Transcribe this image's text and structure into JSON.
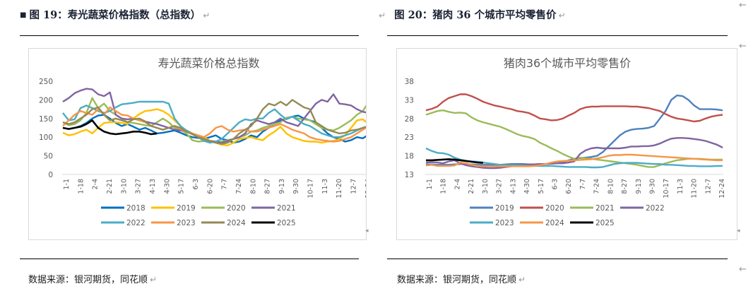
{
  "left": {
    "figure_title": "图 19：寿光蔬菜价格指数（总指数）",
    "source": "数据来源：银河期货，同花顺"
  },
  "right": {
    "figure_title": "图 20：猪肉 36 个城市平均零售价",
    "source": "数据来源：银河期货，同花顺"
  },
  "paragraph_mark": "↵",
  "edge_arrow": "←",
  "chart_data": [
    {
      "type": "line",
      "title": "寿光蔬菜价格总指数",
      "xlabel": "",
      "ylabel": "",
      "ylim": [
        0,
        250
      ],
      "yticks": [
        "0",
        "50",
        "100",
        "150",
        "200",
        "250"
      ],
      "grid": false,
      "legend": "bottom",
      "categories": [
        "1-1",
        "1-18",
        "2-4",
        "2-21",
        "3-10",
        "3-27",
        "4-13",
        "4-30",
        "5-17",
        "6-3",
        "6-20",
        "7-7",
        "7-24",
        "8-10",
        "8-27",
        "9-13",
        "9-30",
        "10-17",
        "11-3",
        "11-20",
        "12-7",
        "12-24"
      ],
      "x_points": 53,
      "series": [
        {
          "name": "2018",
          "color": "#0070C0",
          "values": [
            125,
            122,
            125,
            130,
            138,
            150,
            158,
            160,
            150,
            138,
            130,
            135,
            128,
            120,
            125,
            118,
            110,
            112,
            115,
            118,
            112,
            105,
            100,
            98,
            95,
            100,
            105,
            95,
            92,
            85,
            88,
            95,
            105,
            100,
            115,
            125,
            135,
            145,
            150,
            155,
            158,
            150,
            145,
            140,
            125,
            110,
            100,
            95,
            88,
            92,
            100,
            97,
            107
          ]
        },
        {
          "name": "2019",
          "color": "#FFC000",
          "values": [
            112,
            105,
            108,
            115,
            120,
            110,
            125,
            138,
            140,
            140,
            138,
            135,
            150,
            162,
            170,
            172,
            175,
            170,
            160,
            145,
            130,
            115,
            110,
            105,
            100,
            90,
            85,
            80,
            78,
            85,
            95,
            98,
            100,
            95,
            92,
            105,
            115,
            128,
            110,
            100,
            95,
            90,
            88,
            88,
            85,
            88,
            90,
            95,
            105,
            125,
            145,
            148,
            135
          ]
        },
        {
          "name": "2020",
          "color": "#9BBB59",
          "values": [
            140,
            132,
            135,
            145,
            165,
            205,
            178,
            190,
            170,
            160,
            150,
            140,
            138,
            135,
            132,
            130,
            140,
            150,
            140,
            125,
            120,
            110,
            92,
            88,
            90,
            88,
            85,
            88,
            92,
            95,
            100,
            105,
            115,
            118,
            125,
            130,
            135,
            140,
            152,
            155,
            150,
            148,
            145,
            135,
            125,
            120,
            118,
            125,
            135,
            145,
            160,
            170,
            195
          ]
        },
        {
          "name": "2021",
          "color": "#8064A2",
          "values": [
            195,
            205,
            218,
            225,
            230,
            228,
            215,
            210,
            220,
            160,
            150,
            148,
            150,
            145,
            142,
            138,
            135,
            130,
            125,
            120,
            118,
            118,
            110,
            100,
            95,
            90,
            88,
            85,
            90,
            95,
            100,
            110,
            135,
            145,
            140,
            135,
            140,
            150,
            140,
            135,
            130,
            150,
            170,
            190,
            200,
            195,
            215,
            190,
            188,
            185,
            175,
            168,
            165
          ]
        },
        {
          "name": "2022",
          "color": "#4BACC6",
          "values": [
            165,
            145,
            148,
            178,
            185,
            178,
            170,
            165,
            170,
            180,
            188,
            190,
            192,
            195,
            195,
            195,
            195,
            195,
            190,
            150,
            130,
            118,
            110,
            100,
            90,
            85,
            88,
            95,
            110,
            125,
            140,
            148,
            145,
            150,
            150,
            165,
            175,
            160,
            148,
            155,
            145,
            135,
            130,
            120,
            110,
            105,
            100,
            100,
            105,
            110,
            118,
            125,
            130
          ]
        },
        {
          "name": "2023",
          "color": "#F79646",
          "values": [
            130,
            145,
            160,
            170,
            165,
            160,
            175,
            160,
            180,
            170,
            160,
            158,
            150,
            145,
            140,
            130,
            125,
            120,
            125,
            130,
            122,
            115,
            110,
            105,
            100,
            110,
            125,
            130,
            120,
            115,
            118,
            120,
            115,
            115,
            120,
            125,
            130,
            135,
            128,
            120,
            115,
            110,
            100,
            95,
            92,
            90,
            88,
            90,
            95,
            100,
            110,
            120,
            130
          ]
        },
        {
          "name": "2024",
          "color": "#948A54",
          "values": [
            140,
            135,
            140,
            150,
            160,
            175,
            180,
            160,
            145,
            150,
            145,
            140,
            148,
            150,
            142,
            130,
            125,
            120,
            125,
            130,
            125,
            115,
            108,
            100,
            95,
            90,
            85,
            82,
            85,
            95,
            110,
            120,
            130,
            150,
            175,
            190,
            185,
            195,
            185,
            200,
            190,
            180,
            175,
            140,
            130,
            120,
            115,
            110,
            112,
            118,
            120,
            125,
            130
          ]
        },
        {
          "name": "2025",
          "color": "#000000",
          "values": [
            125,
            122,
            125,
            128,
            135,
            145,
            125,
            115,
            110,
            108,
            110,
            112,
            115,
            115,
            112,
            108,
            110,
            null,
            null,
            null,
            null,
            null,
            null,
            null,
            null,
            null,
            null,
            null,
            null,
            null,
            null,
            null,
            null,
            null,
            null,
            null,
            null,
            null,
            null,
            null,
            null,
            null,
            null,
            null,
            null,
            null,
            null,
            null,
            null,
            null,
            null,
            null,
            null
          ]
        }
      ]
    },
    {
      "type": "line",
      "title": "猪肉36个城市平均零售价",
      "xlabel": "",
      "ylabel": "",
      "ylim": [
        13,
        38
      ],
      "yticks": [
        "13",
        "18",
        "23",
        "28",
        "33",
        "38"
      ],
      "grid": false,
      "legend": "bottom",
      "categories": [
        "1-1",
        "1-18",
        "2-4",
        "2-21",
        "3-10",
        "3-27",
        "4-13",
        "4-30",
        "5-17",
        "6-3",
        "6-20",
        "7-7",
        "7-24",
        "8-10",
        "8-27",
        "9-13",
        "9-30",
        "10-17",
        "11-3",
        "11-20",
        "12-7",
        "12-24"
      ],
      "x_points": 53,
      "series": [
        {
          "name": "2019",
          "color": "#4F81BD",
          "values": [
            15.7,
            15.7,
            15.6,
            15.6,
            15.6,
            15.7,
            15.8,
            15.8,
            15.7,
            15.6,
            15.6,
            15.6,
            15.6,
            15.6,
            15.7,
            15.8,
            15.8,
            15.8,
            15.7,
            15.7,
            15.8,
            15.8,
            15.9,
            16.0,
            16.3,
            16.8,
            17.2,
            17.4,
            17.5,
            17.7,
            18.0,
            19.0,
            20.5,
            22.0,
            23.5,
            24.5,
            25.0,
            25.2,
            25.3,
            25.5,
            26.0,
            28.0,
            30.0,
            33.0,
            34.2,
            34.0,
            33.0,
            31.5,
            30.5,
            30.5,
            30.5,
            30.4,
            30.2
          ]
        },
        {
          "name": "2020",
          "color": "#C0504D",
          "values": [
            30.2,
            30.6,
            31.2,
            32.5,
            33.5,
            34.0,
            34.5,
            34.5,
            34.0,
            33.3,
            32.5,
            32.0,
            31.5,
            31.2,
            30.8,
            30.5,
            30.0,
            29.8,
            29.5,
            28.8,
            28.0,
            27.8,
            27.5,
            27.6,
            28.0,
            28.8,
            29.5,
            30.5,
            31.0,
            31.2,
            31.2,
            31.3,
            31.3,
            31.3,
            31.3,
            31.3,
            31.2,
            31.2,
            31.0,
            30.8,
            30.4,
            30.0,
            29.2,
            28.5,
            28.0,
            27.8,
            27.5,
            27.2,
            27.4,
            28.0,
            28.5,
            28.8,
            29.0
          ]
        },
        {
          "name": "2021",
          "color": "#9BBB59",
          "values": [
            29.0,
            29.5,
            30.0,
            30.2,
            29.8,
            29.5,
            29.6,
            29.4,
            28.3,
            27.5,
            27.0,
            26.6,
            26.2,
            25.8,
            25.2,
            24.5,
            23.8,
            23.3,
            23.0,
            22.5,
            21.5,
            20.8,
            20.0,
            19.3,
            18.5,
            17.8,
            17.2,
            17.5,
            17.3,
            17.2,
            17.0,
            16.8,
            16.6,
            16.4,
            16.2,
            16.0,
            15.8,
            15.6,
            15.3,
            15.0,
            15.0,
            15.5,
            16.0,
            16.4,
            16.8,
            17.0,
            17.2,
            17.2,
            17.2,
            17.1,
            17.0,
            17.0,
            17.0
          ]
        },
        {
          "name": "2022",
          "color": "#8064A2",
          "values": [
            16.2,
            16.3,
            16.2,
            16.0,
            16.5,
            16.8,
            16.0,
            15.5,
            15.2,
            15.0,
            14.8,
            14.7,
            14.7,
            14.8,
            15.0,
            15.2,
            15.4,
            15.6,
            15.7,
            15.7,
            15.8,
            15.8,
            15.9,
            16.0,
            16.0,
            16.2,
            16.5,
            18.5,
            19.5,
            20.0,
            20.2,
            20.0,
            20.0,
            20.0,
            20.0,
            20.2,
            20.5,
            20.5,
            20.6,
            20.6,
            20.8,
            21.3,
            22.0,
            22.6,
            22.8,
            22.8,
            22.7,
            22.5,
            22.3,
            22.0,
            21.5,
            21.0,
            20.2
          ]
        },
        {
          "name": "2023",
          "color": "#4BACC6",
          "values": [
            20.0,
            19.3,
            18.8,
            18.7,
            18.3,
            17.5,
            17.0,
            16.7,
            16.5,
            16.4,
            16.2,
            16.0,
            15.8,
            15.6,
            15.5,
            15.4,
            15.4,
            15.4,
            15.3,
            15.3,
            15.3,
            15.3,
            15.3,
            15.2,
            15.1,
            15.0,
            15.0,
            15.0,
            15.0,
            14.9,
            14.9,
            15.0,
            15.4,
            15.8,
            16.0,
            16.1,
            16.1,
            16.1,
            16.0,
            15.9,
            15.8,
            15.8,
            15.6,
            15.6,
            15.5,
            15.4,
            15.3,
            15.3,
            15.2,
            15.2,
            15.2,
            15.3,
            15.3
          ]
        },
        {
          "name": "2024",
          "color": "#F79646",
          "values": [
            15.4,
            15.6,
            15.3,
            15.3,
            15.3,
            15.4,
            16.2,
            16.0,
            15.6,
            15.3,
            15.2,
            15.2,
            15.2,
            15.2,
            15.2,
            15.2,
            15.2,
            15.2,
            15.2,
            15.3,
            15.5,
            15.8,
            16.2,
            16.5,
            16.6,
            16.7,
            16.8,
            16.9,
            17.0,
            17.1,
            17.3,
            17.6,
            18.0,
            18.2,
            18.2,
            18.3,
            18.3,
            18.2,
            18.1,
            18.0,
            17.9,
            17.8,
            17.7,
            17.6,
            17.5,
            17.4,
            17.3,
            17.2,
            17.1,
            17.0,
            16.9,
            16.8,
            16.8
          ]
        },
        {
          "name": "2025",
          "color": "#000000",
          "values": [
            16.8,
            16.8,
            16.9,
            17.0,
            17.1,
            17.0,
            16.8,
            16.6,
            16.4,
            16.2,
            16.1,
            null,
            null,
            null,
            null,
            null,
            null,
            null,
            null,
            null,
            null,
            null,
            null,
            null,
            null,
            null,
            null,
            null,
            null,
            null,
            null,
            null,
            null,
            null,
            null,
            null,
            null,
            null,
            null,
            null,
            null,
            null,
            null,
            null,
            null,
            null,
            null,
            null,
            null,
            null,
            null,
            null,
            null
          ]
        }
      ]
    }
  ]
}
